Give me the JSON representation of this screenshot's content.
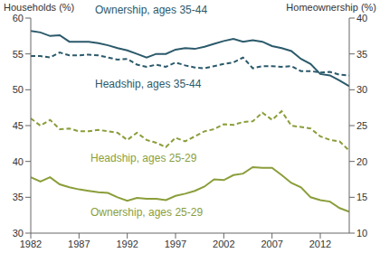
{
  "chart_data": {
    "type": "line",
    "y_label": "Households (%)",
    "y2_label": "Homeownership (%)",
    "x": [
      1982,
      1983,
      1984,
      1985,
      1986,
      1987,
      1988,
      1989,
      1990,
      1991,
      1992,
      1993,
      1994,
      1995,
      1996,
      1997,
      1998,
      1999,
      2000,
      2001,
      2002,
      2003,
      2004,
      2005,
      2006,
      2007,
      2008,
      2009,
      2010,
      2011,
      2012,
      2013,
      2014,
      2015
    ],
    "xlim": [
      1982,
      2015
    ],
    "xticks": [
      1982,
      1987,
      1992,
      1997,
      2002,
      2007,
      2012
    ],
    "ylim": [
      30,
      60
    ],
    "yticks": [
      30,
      35,
      40,
      45,
      50,
      55,
      60
    ],
    "y2lim": [
      10,
      40
    ],
    "y2ticks": [
      10,
      15,
      20,
      25,
      30,
      35,
      40
    ],
    "grid": false,
    "series": [
      {
        "name": "Ownership, ages 35-44",
        "color": "#2b5a6b",
        "line_style": "solid",
        "axis": "y2",
        "values": [
          38.2,
          38.0,
          37.5,
          37.6,
          36.7,
          36.7,
          36.7,
          36.5,
          36.2,
          35.8,
          35.5,
          35.0,
          34.5,
          35.0,
          35.0,
          35.6,
          35.8,
          35.7,
          36.0,
          36.4,
          36.8,
          37.1,
          36.7,
          36.9,
          36.7,
          36.1,
          35.8,
          35.4,
          34.3,
          33.6,
          32.2,
          32.0,
          31.3,
          30.5
        ]
      },
      {
        "name": "Headship, ages 35-44",
        "color": "#2b5a6b",
        "line_style": "dashed",
        "axis": "y",
        "values": [
          54.7,
          54.7,
          54.5,
          55.2,
          54.8,
          54.8,
          54.9,
          54.8,
          54.5,
          54.2,
          54.3,
          53.5,
          53.2,
          53.5,
          53.2,
          53.8,
          53.4,
          53.1,
          53.0,
          53.3,
          53.6,
          53.8,
          54.5,
          53.0,
          53.3,
          53.3,
          53.2,
          53.3,
          52.6,
          52.6,
          52.4,
          52.5,
          52.1,
          52.0
        ]
      },
      {
        "name": "Headship, ages 25-29",
        "color": "#8a9e3a",
        "line_style": "dashed",
        "axis": "y",
        "values": [
          46.0,
          45.0,
          45.8,
          44.5,
          44.6,
          44.2,
          44.2,
          44.4,
          44.2,
          44.0,
          43.0,
          44.0,
          43.0,
          42.6,
          42.0,
          43.3,
          42.8,
          43.5,
          44.2,
          44.5,
          45.2,
          45.1,
          45.5,
          45.6,
          46.8,
          45.8,
          47.0,
          45.0,
          44.8,
          44.6,
          43.5,
          43.0,
          42.8,
          41.5
        ]
      },
      {
        "name": "Ownership, ages 25-29",
        "color": "#8a9e3a",
        "line_style": "solid",
        "axis": "y2",
        "values": [
          17.8,
          17.2,
          17.8,
          16.8,
          16.4,
          16.1,
          15.9,
          15.7,
          15.6,
          15.0,
          14.5,
          14.9,
          14.8,
          14.8,
          14.6,
          15.2,
          15.5,
          15.9,
          16.5,
          17.5,
          17.4,
          18.1,
          18.3,
          19.2,
          19.1,
          19.1,
          18.1,
          17.0,
          16.4,
          15.0,
          14.6,
          14.4,
          13.5,
          13.0
        ]
      }
    ]
  }
}
